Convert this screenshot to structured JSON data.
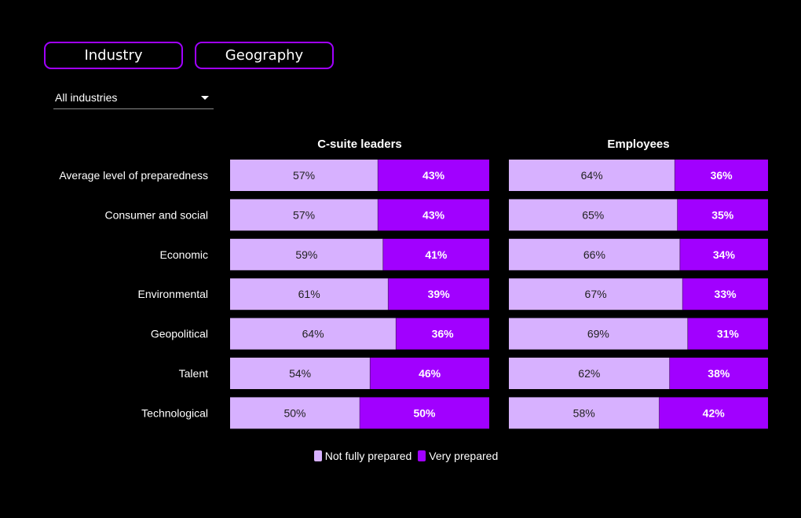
{
  "filters": {
    "tabs": [
      {
        "label": "Industry"
      },
      {
        "label": "Geography"
      }
    ],
    "dropdown": {
      "selected": "All industries"
    }
  },
  "colors": {
    "not_fully_prepared": "#d7b1ff",
    "very_prepared": "#a100ff",
    "accent_border": "#a100ff"
  },
  "chart_data": {
    "type": "bar",
    "orientation": "horizontal",
    "stacked": true,
    "normalized_100": true,
    "categories": [
      "Average level of preparedness",
      "Consumer and social",
      "Economic",
      "Environmental",
      "Geopolitical",
      "Talent",
      "Technological"
    ],
    "panels": [
      {
        "title": "C-suite leaders",
        "series": [
          {
            "name": "Not fully prepared",
            "values": [
              57,
              57,
              59,
              61,
              64,
              54,
              50
            ]
          },
          {
            "name": "Very prepared",
            "values": [
              43,
              43,
              41,
              39,
              36,
              46,
              50
            ]
          }
        ]
      },
      {
        "title": "Employees",
        "series": [
          {
            "name": "Not fully prepared",
            "values": [
              64,
              65,
              66,
              67,
              69,
              62,
              58
            ]
          },
          {
            "name": "Very prepared",
            "values": [
              36,
              35,
              34,
              33,
              31,
              38,
              42
            ]
          }
        ]
      }
    ],
    "value_suffix": "%",
    "legend": {
      "position": "bottom-center",
      "entries": [
        "Not fully prepared",
        "Very prepared"
      ]
    },
    "grid": false
  }
}
